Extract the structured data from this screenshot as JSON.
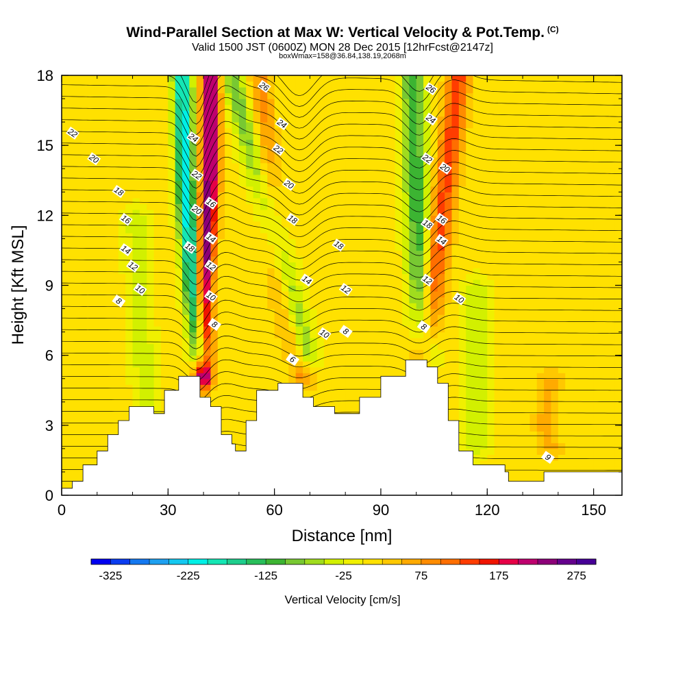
{
  "header": {
    "title": "Wind-Parallel Section at Max W: Vertical Velocity & Pot.Temp.",
    "title_sup": "(C)",
    "subtitle": "Valid 1500 JST (0600Z) MON 28 Dec 2015 [12hrFcst@2147z]",
    "subsubtitle": "boxWmax=158@36.84,138.19,2068m"
  },
  "chart_data": {
    "type": "heatmap",
    "xlabel": "Distance [nm]",
    "ylabel": "Height [Kft MSL]",
    "xlim": [
      0,
      158
    ],
    "ylim": [
      0,
      18
    ],
    "x_ticks": [
      "0",
      "30",
      "60",
      "90",
      "120",
      "150"
    ],
    "y_ticks": [
      "0",
      "3",
      "6",
      "9",
      "12",
      "15",
      "18"
    ],
    "colorbar": {
      "label": "Vertical Velocity [cm/s]",
      "tick_labels": [
        "-325",
        "-225",
        "-125",
        "-25",
        "75",
        "175",
        "275"
      ],
      "min": -350,
      "max": 300,
      "step": 25,
      "colors": [
        "#0000f0",
        "#0a3cf0",
        "#1478f0",
        "#1ea0f0",
        "#14c8f0",
        "#00f0e6",
        "#14e6b4",
        "#1ecd8c",
        "#28be5a",
        "#3cb432",
        "#78c832",
        "#a0dc1e",
        "#d2f000",
        "#f0f000",
        "#ffe100",
        "#ffc800",
        "#ffaa00",
        "#ff8c00",
        "#ff6e00",
        "#ff3c00",
        "#f01400",
        "#e60046",
        "#be006e",
        "#8c0078",
        "#64008c",
        "#460096"
      ]
    },
    "terrain_kft": [
      [
        0,
        0.3
      ],
      [
        3,
        0.3
      ],
      [
        3,
        0.6
      ],
      [
        6,
        0.6
      ],
      [
        6,
        1.3
      ],
      [
        10,
        1.3
      ],
      [
        10,
        1.9
      ],
      [
        13,
        1.9
      ],
      [
        13,
        2.6
      ],
      [
        16,
        2.6
      ],
      [
        16,
        3.2
      ],
      [
        19,
        3.2
      ],
      [
        19,
        3.8
      ],
      [
        26,
        3.8
      ],
      [
        26,
        3.5
      ],
      [
        29,
        3.5
      ],
      [
        29,
        4.5
      ],
      [
        33,
        4.5
      ],
      [
        33,
        5.1
      ],
      [
        39,
        5.1
      ],
      [
        39,
        4.2
      ],
      [
        42,
        4.2
      ],
      [
        42,
        3.8
      ],
      [
        45,
        3.8
      ],
      [
        45,
        2.6
      ],
      [
        48,
        2.6
      ],
      [
        48,
        2.2
      ],
      [
        49,
        2.2
      ],
      [
        49,
        1.9
      ],
      [
        52,
        1.9
      ],
      [
        52,
        3.2
      ],
      [
        55,
        3.2
      ],
      [
        55,
        4.5
      ],
      [
        61,
        4.5
      ],
      [
        61,
        4.8
      ],
      [
        68,
        4.8
      ],
      [
        68,
        4.2
      ],
      [
        71,
        4.2
      ],
      [
        71,
        3.8
      ],
      [
        77,
        3.8
      ],
      [
        77,
        3.5
      ],
      [
        84,
        3.5
      ],
      [
        84,
        4.2
      ],
      [
        90,
        4.2
      ],
      [
        90,
        5.1
      ],
      [
        97,
        5.1
      ],
      [
        97,
        5.8
      ],
      [
        103,
        5.8
      ],
      [
        103,
        5.5
      ],
      [
        106,
        5.5
      ],
      [
        106,
        4.8
      ],
      [
        109,
        4.8
      ],
      [
        109,
        3.2
      ],
      [
        112,
        3.2
      ],
      [
        112,
        1.9
      ],
      [
        116,
        1.9
      ],
      [
        116,
        1.3
      ],
      [
        125,
        1.3
      ],
      [
        125,
        1.0
      ],
      [
        126,
        1.0
      ],
      [
        126,
        0.6
      ],
      [
        136,
        0.6
      ],
      [
        136,
        1.0
      ],
      [
        158,
        1.0
      ]
    ],
    "updraft_bands": [
      {
        "x_kft": [
          [
            42,
            18
          ],
          [
            42,
            14
          ],
          [
            40,
            9
          ],
          [
            40,
            5
          ]
        ],
        "w": 240
      },
      {
        "x_kft": [
          [
            56,
            18
          ],
          [
            58,
            13
          ],
          [
            63,
            8
          ],
          [
            68,
            5
          ]
        ],
        "w": 75
      },
      {
        "x_kft": [
          [
            112,
            18
          ],
          [
            108,
            13
          ],
          [
            104,
            8
          ],
          [
            102,
            6
          ]
        ],
        "w": 130
      },
      {
        "x_kft": [
          [
            138,
            5
          ],
          [
            136,
            3
          ],
          [
            138,
            2
          ]
        ],
        "w": 50
      }
    ],
    "downdraft_bands": [
      {
        "x_kft": [
          [
            34,
            18
          ],
          [
            35,
            13
          ],
          [
            37,
            9
          ],
          [
            39,
            6
          ]
        ],
        "w": -225
      },
      {
        "x_kft": [
          [
            48,
            18
          ],
          [
            55,
            14
          ],
          [
            64,
            9
          ],
          [
            69,
            6
          ]
        ],
        "w": -100
      },
      {
        "x_kft": [
          [
            99,
            18
          ],
          [
            100,
            13
          ],
          [
            101,
            9
          ],
          [
            103,
            6
          ]
        ],
        "w": -125
      },
      {
        "x_kft": [
          [
            21,
            12
          ],
          [
            22,
            8
          ],
          [
            24,
            4
          ]
        ],
        "w": -50
      },
      {
        "x_kft": [
          [
            117,
            9
          ],
          [
            117,
            5
          ],
          [
            117,
            2
          ]
        ],
        "w": -50
      }
    ],
    "theta_labels": [
      {
        "text": "22",
        "x": 3,
        "y": 15.5
      },
      {
        "text": "20",
        "x": 9,
        "y": 14.4
      },
      {
        "text": "18",
        "x": 16,
        "y": 13.0
      },
      {
        "text": "16",
        "x": 18,
        "y": 11.8
      },
      {
        "text": "14",
        "x": 18,
        "y": 10.5
      },
      {
        "text": "12",
        "x": 20,
        "y": 9.8
      },
      {
        "text": "10",
        "x": 22,
        "y": 8.8
      },
      {
        "text": "8",
        "x": 16,
        "y": 8.3
      },
      {
        "text": "24",
        "x": 37,
        "y": 15.3
      },
      {
        "text": "22",
        "x": 38,
        "y": 13.7
      },
      {
        "text": "20",
        "x": 38,
        "y": 12.2
      },
      {
        "text": "18",
        "x": 36,
        "y": 10.6
      },
      {
        "text": "16",
        "x": 42,
        "y": 12.5
      },
      {
        "text": "14",
        "x": 42,
        "y": 11.0
      },
      {
        "text": "12",
        "x": 42,
        "y": 9.8
      },
      {
        "text": "10",
        "x": 42,
        "y": 8.5
      },
      {
        "text": "8",
        "x": 43,
        "y": 7.3
      },
      {
        "text": "26",
        "x": 57,
        "y": 17.5
      },
      {
        "text": "24",
        "x": 62,
        "y": 15.9
      },
      {
        "text": "22",
        "x": 61,
        "y": 14.8
      },
      {
        "text": "20",
        "x": 64,
        "y": 13.3
      },
      {
        "text": "18",
        "x": 65,
        "y": 11.8
      },
      {
        "text": "18",
        "x": 78,
        "y": 10.7
      },
      {
        "text": "14",
        "x": 69,
        "y": 9.2
      },
      {
        "text": "12",
        "x": 80,
        "y": 8.8
      },
      {
        "text": "10",
        "x": 74,
        "y": 6.9
      },
      {
        "text": "8",
        "x": 80,
        "y": 7.0
      },
      {
        "text": "6",
        "x": 65,
        "y": 5.8
      },
      {
        "text": "26",
        "x": 104,
        "y": 17.4
      },
      {
        "text": "24",
        "x": 104,
        "y": 16.1
      },
      {
        "text": "22",
        "x": 103,
        "y": 14.4
      },
      {
        "text": "20",
        "x": 108,
        "y": 14.0
      },
      {
        "text": "18",
        "x": 103,
        "y": 11.6
      },
      {
        "text": "16",
        "x": 107,
        "y": 11.8
      },
      {
        "text": "14",
        "x": 107,
        "y": 10.9
      },
      {
        "text": "12",
        "x": 103,
        "y": 9.2
      },
      {
        "text": "10",
        "x": 112,
        "y": 8.4
      },
      {
        "text": "8",
        "x": 102,
        "y": 7.2
      },
      {
        "text": "9",
        "x": 137,
        "y": 1.6
      }
    ]
  }
}
